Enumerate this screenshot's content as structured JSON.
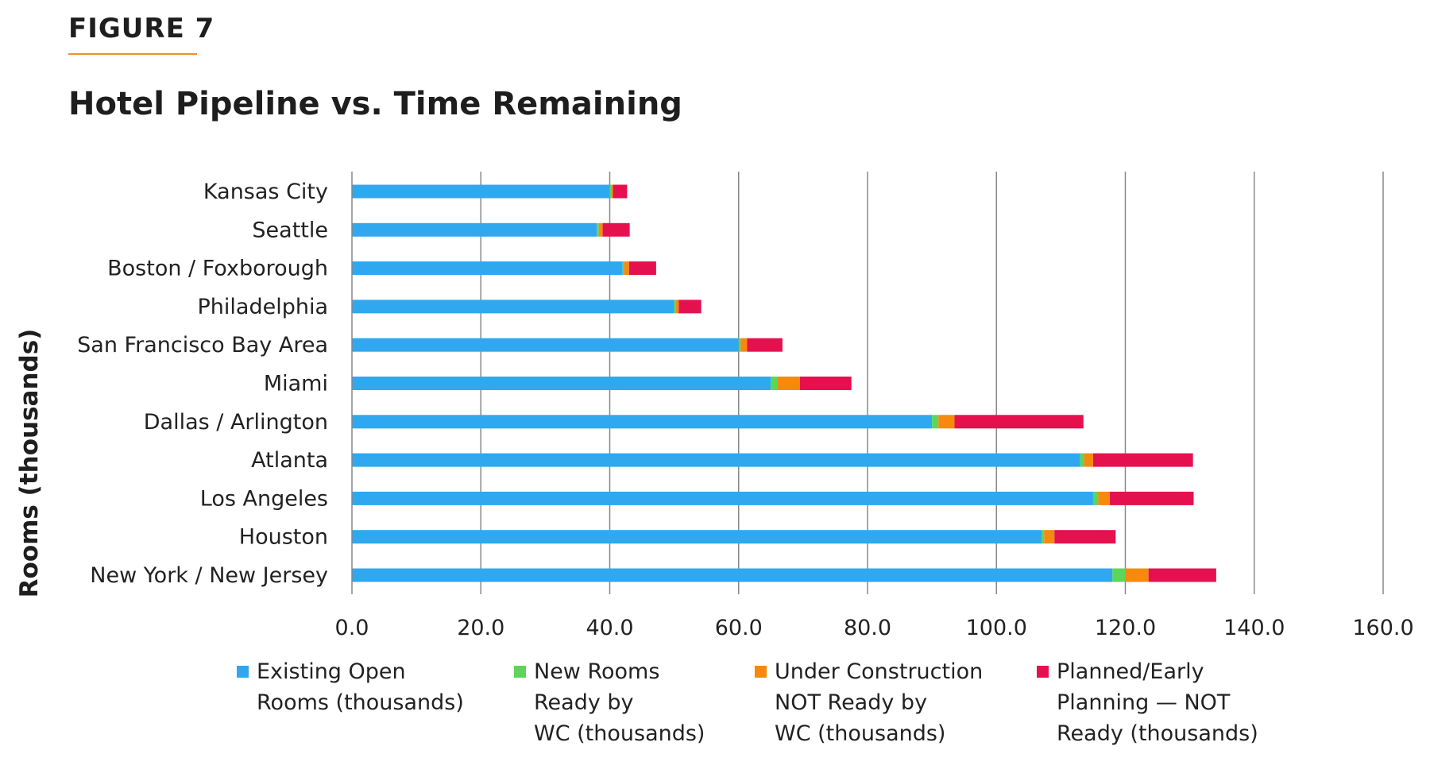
{
  "figure_label": "FIGURE 7",
  "colors": {
    "accent_rule": "#E8912E",
    "existing": "#2FA8F0",
    "new_ready": "#5BD65A",
    "under_construction": "#F7890F",
    "planned": "#E5114F",
    "grid": "#888888",
    "axis": "#888888"
  },
  "chart_data": {
    "type": "bar",
    "orientation": "horizontal",
    "stacked": true,
    "title": "Hotel Pipeline vs. Time Remaining",
    "ylabel": "Rooms (thousands)",
    "xlabel": "",
    "xlim": [
      0,
      160
    ],
    "xticks": [
      "0.0",
      "20.0",
      "40.0",
      "60.0",
      "80.0",
      "100.0",
      "120.0",
      "140.0",
      "160.0"
    ],
    "grid": "vertical",
    "legend_position": "bottom",
    "categories": [
      "Kansas City",
      "Seattle",
      "Boston / Foxborough",
      "Philadelphia",
      "San Francisco Bay Area",
      "Miami",
      "Dallas / Arlington",
      "Atlanta",
      "Los Angeles",
      "Houston",
      "New York / New Jersey"
    ],
    "series": [
      {
        "name": "Existing Open Rooms (thousands)",
        "legend_text": "Existing Open\nRooms (thousands)",
        "color": "#2FA8F0",
        "values": [
          40.0,
          38.0,
          42.0,
          50.0,
          60.0,
          65.0,
          90.0,
          113.0,
          115.0,
          107.0,
          118.0
        ]
      },
      {
        "name": "New Rooms Ready by WC (thousands)",
        "legend_text": "New Rooms\nReady by\nWC (thousands)",
        "color": "#5BD65A",
        "values": [
          0.2,
          0.3,
          0.2,
          0.2,
          0.3,
          1.0,
          1.0,
          0.6,
          0.8,
          0.4,
          2.0
        ]
      },
      {
        "name": "Under Construction NOT Ready by WC (thousands)",
        "legend_text": "Under Construction\nNOT Ready by\nWC (thousands)",
        "color": "#F7890F",
        "values": [
          0.3,
          0.6,
          0.8,
          0.5,
          1.0,
          3.5,
          2.5,
          1.4,
          1.8,
          1.6,
          3.6
        ]
      },
      {
        "name": "Planned/Early Planning — NOT Ready (thousands)",
        "legend_text": "Planned/Early\nPlanning — NOT\nReady (thousands)",
        "color": "#E5114F",
        "values": [
          2.2,
          4.2,
          4.2,
          3.5,
          5.5,
          8.0,
          20.0,
          15.5,
          13.0,
          9.5,
          10.5
        ]
      }
    ]
  }
}
